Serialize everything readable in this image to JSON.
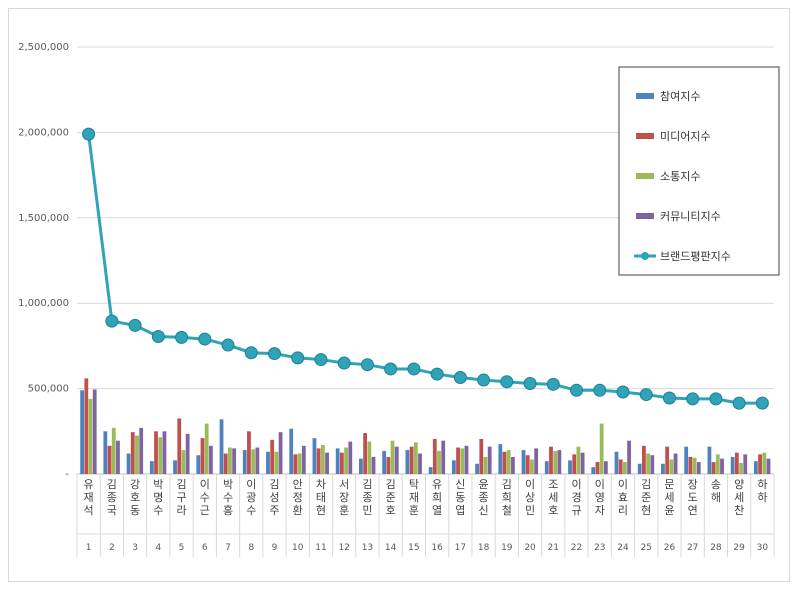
{
  "chart_data": {
    "type": "bar",
    "title": "",
    "xlabel": "",
    "ylabel": "",
    "ylim": [
      0,
      2500000
    ],
    "y_ticks": [
      "-",
      "500,000",
      "1,000,000",
      "1,500,000",
      "2,000,000",
      "2,500,000"
    ],
    "grid": true,
    "legend_position": "top-right",
    "categories": [
      "유재석",
      "김종국",
      "강호동",
      "박명수",
      "김구라",
      "이수근",
      "박수홍",
      "이광수",
      "김성주",
      "안정환",
      "차태현",
      "서장훈",
      "김종민",
      "김준호",
      "탁재훈",
      "유희열",
      "신동엽",
      "윤종신",
      "김희철",
      "이상민",
      "조세호",
      "이경규",
      "이영자",
      "이효리",
      "김준현",
      "문세윤",
      "장도연",
      "송해",
      "양세찬",
      "하하"
    ],
    "ranks": [
      "1",
      "2",
      "3",
      "4",
      "5",
      "6",
      "7",
      "8",
      "9",
      "10",
      "11",
      "12",
      "13",
      "14",
      "15",
      "16",
      "17",
      "18",
      "19",
      "20",
      "21",
      "22",
      "23",
      "24",
      "25",
      "26",
      "27",
      "28",
      "29",
      "30"
    ],
    "series": [
      {
        "name": "참여지수",
        "kind": "bar",
        "color": "#4f81bd",
        "values": [
          490000,
          250000,
          120000,
          75000,
          80000,
          110000,
          320000,
          140000,
          130000,
          265000,
          210000,
          150000,
          90000,
          135000,
          140000,
          40000,
          80000,
          60000,
          175000,
          140000,
          75000,
          80000,
          40000,
          130000,
          60000,
          60000,
          160000,
          160000,
          100000,
          75000
        ]
      },
      {
        "name": "미디어지수",
        "kind": "bar",
        "color": "#c0504d",
        "values": [
          560000,
          165000,
          245000,
          250000,
          325000,
          210000,
          120000,
          250000,
          200000,
          115000,
          150000,
          125000,
          240000,
          100000,
          160000,
          205000,
          155000,
          205000,
          130000,
          110000,
          160000,
          115000,
          70000,
          85000,
          165000,
          160000,
          100000,
          70000,
          125000,
          115000
        ]
      },
      {
        "name": "소통지수",
        "kind": "bar",
        "color": "#9bbb59",
        "values": [
          440000,
          270000,
          225000,
          215000,
          140000,
          295000,
          155000,
          145000,
          130000,
          120000,
          170000,
          155000,
          190000,
          195000,
          185000,
          135000,
          150000,
          100000,
          140000,
          85000,
          135000,
          160000,
          295000,
          70000,
          120000,
          85000,
          95000,
          115000,
          65000,
          125000
        ]
      },
      {
        "name": "커뮤니티지수",
        "kind": "bar",
        "color": "#8064a2",
        "values": [
          495000,
          195000,
          270000,
          250000,
          235000,
          165000,
          150000,
          155000,
          245000,
          165000,
          125000,
          190000,
          100000,
          160000,
          120000,
          195000,
          165000,
          160000,
          100000,
          150000,
          140000,
          125000,
          75000,
          195000,
          110000,
          120000,
          70000,
          90000,
          115000,
          90000
        ]
      },
      {
        "name": "브랜드평판지수",
        "kind": "line",
        "color": "#31a3b8",
        "values": [
          1990000,
          895000,
          870000,
          805000,
          800000,
          790000,
          755000,
          710000,
          705000,
          680000,
          670000,
          650000,
          640000,
          615000,
          615000,
          585000,
          565000,
          550000,
          540000,
          530000,
          525000,
          490000,
          490000,
          480000,
          465000,
          445000,
          440000,
          440000,
          415000,
          415000
        ]
      }
    ]
  }
}
